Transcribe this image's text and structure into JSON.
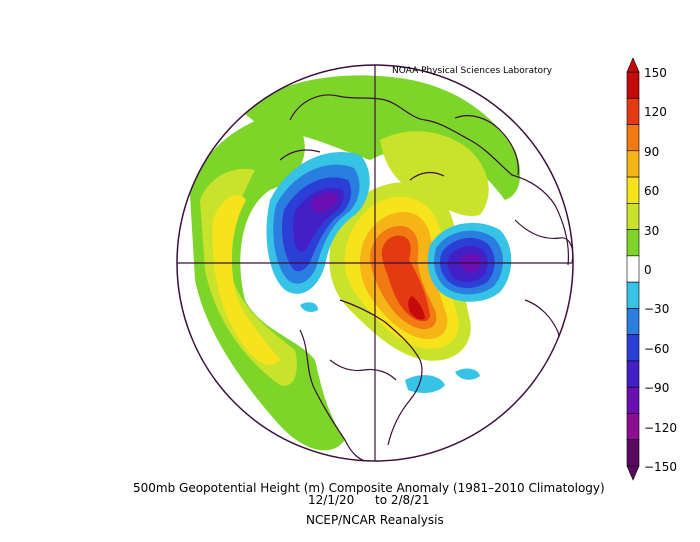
{
  "credit": "NOAA Physical Sciences Laboratory",
  "caption": {
    "line1": "500mb Geopotential Height (m) Composite Anomaly (1981–2010 Climatology)",
    "date_start": "12/1/20",
    "date_end": "to 2/8/21",
    "line3": "NCEP/NCAR Reanalysis"
  },
  "colorbar": {
    "labels": [
      "150",
      "120",
      "90",
      "60",
      "30",
      "0",
      "−30",
      "−60",
      "−90",
      "−120",
      "−150"
    ],
    "colors": [
      "#c40a0a",
      "#e43a12",
      "#f17a12",
      "#f7b417",
      "#f6e31c",
      "#c9e22b",
      "#7ed52a",
      "#ffffff",
      "#36c3e6",
      "#2a7ee0",
      "#2b3fd7",
      "#4320c6",
      "#6a10b3",
      "#8d0e92",
      "#5a0a5e"
    ]
  },
  "map": {
    "projection": "polar-stereographic",
    "center_latitude": 90,
    "anomaly_colors": {
      "green": "#7ed52a",
      "light_green": "#c9e22b",
      "yellow": "#f6e31c",
      "gold": "#f7b417",
      "orange": "#f17a12",
      "red_orange": "#e43a12",
      "red": "#c40a0a",
      "cyan": "#36c3e6",
      "blue": "#2a7ee0",
      "deep_blue": "#2b3fd7",
      "indigo": "#4320c6",
      "purple": "#6a10b3"
    }
  }
}
